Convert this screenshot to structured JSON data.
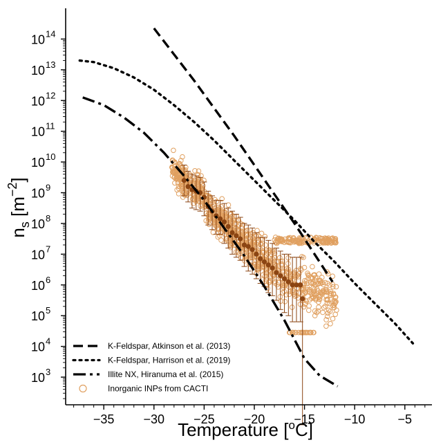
{
  "chart_data": {
    "type": "line",
    "xlabel": "Temperature [°C]",
    "ylabel": "n_s [m^-2]",
    "xlim": [
      -38.8,
      -2.3
    ],
    "ylim_log10": [
      2.1,
      15.0
    ],
    "y_scale": "log",
    "x_ticks": [
      -35,
      -30,
      -25,
      -20,
      -15,
      -10,
      -5
    ],
    "x_tick_labels": [
      "−35",
      "−30",
      "−25",
      "−20",
      "−15",
      "−10",
      "−5"
    ],
    "y_ticks_log10": [
      3,
      4,
      5,
      6,
      7,
      8,
      9,
      10,
      11,
      12,
      13,
      14
    ],
    "y_tick_base": "10",
    "grid": false,
    "legend_position": "lower-left",
    "series": [
      {
        "name": "K-Feldspar, Atkinson et al. (2013)",
        "style": "dashed",
        "color": "#000000",
        "x": [
          -30,
          -28,
          -26,
          -24,
          -22,
          -20,
          -18,
          -16,
          -14,
          -12.2
        ],
        "log10_y": [
          14.35,
          13.5,
          12.65,
          11.75,
          10.85,
          9.9,
          8.95,
          8.0,
          7.0,
          6.1
        ]
      },
      {
        "name": "K-Feldspar, Harrison et al. (2019)",
        "style": "dotted",
        "color": "#000000",
        "x": [
          -37.4,
          -36,
          -34,
          -32,
          -30,
          -28,
          -26,
          -24,
          -22,
          -20,
          -18,
          -16,
          -14,
          -12,
          -10,
          -8,
          -6,
          -4.2
        ],
        "log10_y": [
          13.3,
          13.25,
          13.05,
          12.75,
          12.35,
          11.85,
          11.3,
          10.7,
          10.05,
          9.4,
          8.75,
          8.1,
          7.4,
          6.75,
          6.05,
          5.4,
          4.75,
          4.1
        ]
      },
      {
        "name": "Illite NX, Hiranuma et al. (2015)",
        "style": "dash-dot",
        "color": "#000000",
        "x": [
          -37.1,
          -35,
          -33,
          -31,
          -29,
          -27,
          -25,
          -23,
          -21,
          -19,
          -17,
          -15,
          -13.5,
          -11.7
        ],
        "log10_y": [
          12.1,
          11.85,
          11.45,
          10.95,
          10.3,
          9.55,
          8.75,
          7.85,
          6.95,
          5.95,
          4.85,
          3.6,
          3.05,
          2.7
        ]
      }
    ],
    "scatter_series": {
      "name": "Inorganic INPs from CACTI",
      "color": "#e0a060",
      "marker": "open-circle",
      "x_range": [
        -28.2,
        -11.8
      ]
    },
    "mean_series": {
      "color": "#8b4513",
      "x": [
        -27.0,
        -26.6,
        -26.2,
        -25.8,
        -25.4,
        -25.0,
        -24.6,
        -24.2,
        -23.8,
        -23.4,
        -23.0,
        -22.6,
        -22.2,
        -21.8,
        -21.4,
        -21.0,
        -20.6,
        -20.2,
        -19.8,
        -19.4,
        -19.0,
        -18.6,
        -18.2,
        -17.8,
        -17.4,
        -17.0,
        -16.6,
        -16.2,
        -15.8,
        -15.4,
        -15.2
      ],
      "log10_y": [
        9.4,
        9.2,
        9.1,
        9.05,
        9.0,
        8.85,
        8.55,
        8.4,
        8.25,
        8.15,
        8.05,
        7.9,
        7.7,
        7.6,
        7.5,
        7.3,
        7.25,
        7.15,
        7.0,
        6.85,
        6.75,
        6.65,
        6.55,
        6.4,
        6.3,
        6.2,
        6.1,
        6.0,
        6.0,
        6.0,
        5.55
      ],
      "err_low": [
        0.5,
        0.5,
        0.6,
        0.6,
        0.6,
        0.6,
        0.6,
        0.6,
        0.6,
        0.5,
        0.7,
        0.7,
        0.7,
        0.7,
        0.7,
        0.7,
        0.8,
        0.8,
        0.8,
        0.8,
        0.8,
        0.9,
        0.9,
        0.9,
        1.1,
        1.1,
        1.1,
        1.2,
        1.2,
        1.2,
        4.1
      ],
      "err_high": [
        0.5,
        0.5,
        0.5,
        0.5,
        0.5,
        0.5,
        0.5,
        0.5,
        0.5,
        0.6,
        0.6,
        0.6,
        0.7,
        0.7,
        0.7,
        0.7,
        0.7,
        0.7,
        0.7,
        0.7,
        0.8,
        0.8,
        0.8,
        0.8,
        0.8,
        0.8,
        0.9,
        0.9,
        0.9,
        0.9,
        0.0
      ]
    }
  }
}
